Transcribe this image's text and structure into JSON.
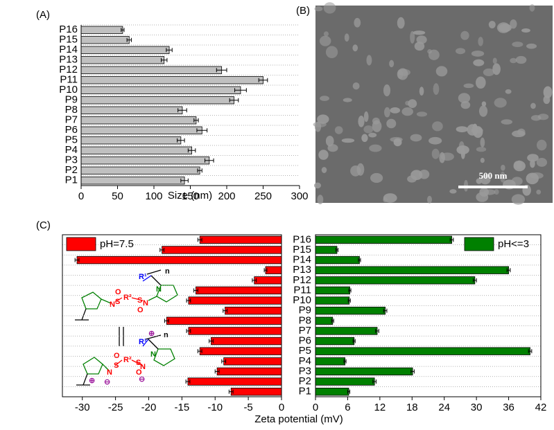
{
  "chart_data": [
    {
      "type": "hbar",
      "label": "(A)",
      "xlabel": "Size (nm)",
      "categories": [
        "P1",
        "P2",
        "P3",
        "P4",
        "P5",
        "P6",
        "P7",
        "P8",
        "P9",
        "P10",
        "P11",
        "P12",
        "P13",
        "P14",
        "P15",
        "P16"
      ],
      "series": [
        {
          "color": "#c0c0c0",
          "values": [
            142,
            163,
            176,
            152,
            137,
            166,
            158,
            139,
            210,
            219,
            250,
            193,
            114,
            121,
            66,
            57
          ],
          "errors": [
            5,
            3,
            6,
            5,
            5,
            7,
            3,
            6,
            6,
            8,
            6,
            7,
            4,
            4,
            3,
            2
          ]
        }
      ],
      "xlim": [
        0,
        300
      ],
      "xticks": [
        0,
        50,
        100,
        150,
        200,
        250,
        300
      ],
      "grid": true
    },
    {
      "type": "hbar",
      "label": "(C)",
      "xlabel": "Zeta potential (mV)",
      "categories": [
        "P1",
        "P2",
        "P3",
        "P4",
        "P5",
        "P6",
        "P7",
        "P8",
        "P9",
        "P10",
        "P11",
        "P12",
        "P13",
        "P14",
        "P15",
        "P16"
      ],
      "series": [
        {
          "name": "pH=7.5",
          "color": "#ff0000",
          "values": [
            -7.6,
            -14.1,
            -9.7,
            -8.7,
            -12.3,
            -10.6,
            -14.0,
            -17.3,
            -8.5,
            -14.0,
            -12.9,
            -4.1,
            -2.4,
            -30.8,
            -18.0,
            -12.3
          ],
          "errors": [
            0.3,
            0.3,
            0.3,
            0.3,
            0.3,
            0.3,
            0.3,
            0.3,
            0.3,
            0.3,
            0.3,
            0.3,
            0.2,
            0.3,
            0.3,
            0.3
          ]
        }
      ],
      "xlim": [
        -33,
        0
      ],
      "xticks": [
        -30,
        -25,
        -20,
        -15,
        -10,
        -5,
        0
      ],
      "grid": true,
      "legend": "upper left"
    },
    {
      "type": "hbar",
      "categories": [
        "P1",
        "P2",
        "P3",
        "P4",
        "P5",
        "P6",
        "P7",
        "P8",
        "P9",
        "P10",
        "P11",
        "P12",
        "P13",
        "P14",
        "P15",
        "P16"
      ],
      "series": [
        {
          "name": "pH<=3",
          "color": "#008000",
          "values": [
            6.2,
            11.0,
            18.1,
            5.5,
            40.0,
            7.2,
            11.5,
            3.2,
            13.0,
            6.3,
            6.4,
            29.7,
            36.0,
            8.2,
            4.0,
            25.4
          ],
          "errors": [
            0.2,
            0.3,
            0.3,
            0.2,
            0.3,
            0.2,
            0.3,
            0.2,
            0.3,
            0.2,
            0.2,
            0.3,
            0.3,
            0.2,
            0.2,
            0.3
          ]
        }
      ],
      "xlim": [
        0,
        42
      ],
      "xticks": [
        0,
        6,
        12,
        18,
        24,
        30,
        36,
        42
      ],
      "grid": true,
      "legend": "upper right"
    }
  ],
  "image_panel": {
    "label": "(B)",
    "scale_bar": "500 nm"
  },
  "structure": {
    "n": "n",
    "R1": "R¹",
    "R2": "R²",
    "N": "N",
    "S": "S",
    "O": "O",
    "plus": "⊕",
    "minus": "⊖"
  }
}
